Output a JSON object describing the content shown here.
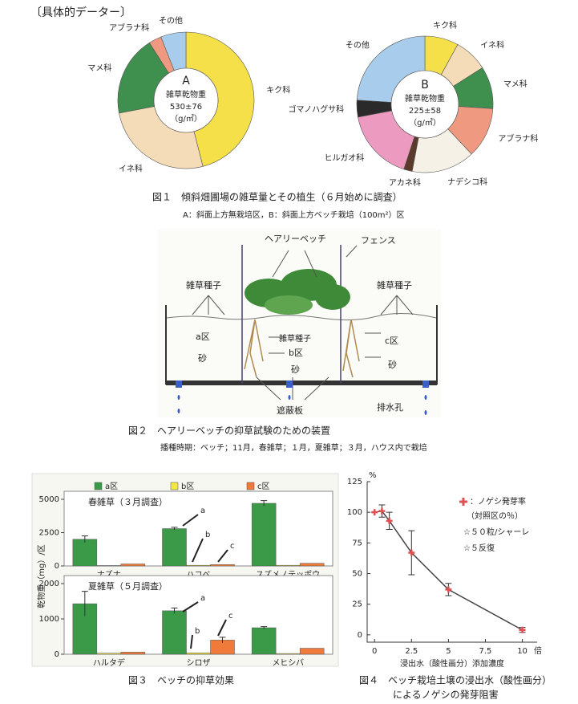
{
  "header": "〔具体的データー〕",
  "figure1": {
    "caption": "図１　傾斜畑圃場の雑草量とその植生（６月始めに調査）",
    "note": "A：斜面上方無栽培区，B：斜面上方ベッチ栽培（100m²）区"
  },
  "figure2": {
    "caption": "図２　ヘアリーベッチの抑草試験のための装置",
    "note": "播種時期：ベッチ；11月，春雑草；１月，夏雑草；３月，ハウス内で栽培",
    "labels": [
      "ヘアリーベッチ",
      "フェンス",
      "雑草種子",
      "雑草種子",
      "a区",
      "砂",
      "雑草種子",
      "b区",
      "砂",
      "c区",
      "砂",
      "遮蔽板",
      "排水孔"
    ]
  },
  "figure3": {
    "caption": "図３　ベッチの抑草効果",
    "ylabel": "乾物重（mg）/区"
  },
  "figure4": {
    "caption": [
      "図４　ベッチ栽培土壌の浸出水（酸性画分）",
      "によるノゲシの発芽阻害"
    ]
  },
  "chart_data": [
    {
      "type": "pie",
      "center_text": [
        "A",
        "雑草乾物重",
        "530±76",
        "（g/㎡）"
      ],
      "categories": [
        "キク科",
        "イネ科",
        "マメ科",
        "アブラナ科",
        "その他"
      ],
      "values": [
        46,
        26,
        19,
        3,
        6
      ],
      "colors": [
        "#f5e04a",
        "#f4dcb8",
        "#3f8f4f",
        "#ef9a80",
        "#a8ccec"
      ]
    },
    {
      "type": "pie",
      "center_text": [
        "B",
        "雑草乾物重",
        "225±58",
        "（g/㎡）"
      ],
      "categories": [
        "キク科",
        "イネ科",
        "マメ科",
        "アブラナ科",
        "ナデシコ科",
        "アカネ科",
        "ヒルガオ科",
        "ゴマノハグサ科",
        "その他"
      ],
      "values": [
        8,
        8,
        10,
        12,
        15,
        2,
        17,
        4,
        24
      ],
      "colors": [
        "#f5e04a",
        "#f4dcb8",
        "#3f8f4f",
        "#ef9a80",
        "#f6f1e6",
        "#5a3a2a",
        "#ec9ac0",
        "#2a2a2a",
        "#a8ccec"
      ]
    },
    {
      "type": "bar",
      "title": "春雑草（３月調査）",
      "categories": [
        "ナズナ",
        "ハコベ",
        "スズメノテッポウ"
      ],
      "series": [
        {
          "name": "a区",
          "color": "#3a9a48",
          "values": [
            2000,
            2800,
            4700
          ],
          "errors": [
            250,
            100,
            200
          ]
        },
        {
          "name": "b区",
          "color": "#f2e640",
          "values": [
            30,
            50,
            50
          ],
          "errors": [
            null,
            null,
            null
          ]
        },
        {
          "name": "c区",
          "color": "#f07a3a",
          "values": [
            150,
            100,
            200
          ],
          "errors": [
            null,
            null,
            null
          ]
        }
      ],
      "ylim": [
        0,
        5000
      ],
      "yticks": [
        0,
        2500,
        5000
      ],
      "annotations": [
        "a",
        "b",
        "c"
      ]
    },
    {
      "type": "bar",
      "title": "夏雑草（５月調査）",
      "categories": [
        "ハルタデ",
        "シロザ",
        "メヒシバ"
      ],
      "series": [
        {
          "name": "a区",
          "color": "#3a9a48",
          "values": [
            1430,
            1230,
            750
          ],
          "errors": [
            350,
            80,
            30
          ]
        },
        {
          "name": "b区",
          "color": "#f2e640",
          "values": [
            30,
            40,
            20
          ],
          "errors": [
            null,
            null,
            null
          ]
        },
        {
          "name": "c区",
          "color": "#f07a3a",
          "values": [
            60,
            400,
            170
          ],
          "errors": [
            null,
            80,
            null
          ]
        }
      ],
      "ylim": [
        0,
        2000
      ],
      "yticks": [
        0,
        1000,
        2000
      ],
      "annotations": [
        "a",
        "b",
        "c"
      ]
    },
    {
      "type": "line",
      "x": [
        0,
        0.5,
        1,
        2.5,
        5,
        10
      ],
      "series": [
        {
          "name": "：ノゲシ発芽率",
          "color": "#444",
          "marker_color": "#e05050",
          "values": [
            100,
            101,
            93,
            67,
            37,
            4
          ],
          "errors": [
            0,
            5,
            7,
            18,
            5,
            2
          ]
        }
      ],
      "legend_notes": [
        "（対照区の％）",
        "☆５０粒/シャーレ",
        "☆５反復"
      ],
      "xlim": [
        -0.5,
        11
      ],
      "xticks": [
        0,
        2.5,
        5,
        7.5,
        10
      ],
      "ylim": [
        -6,
        125
      ],
      "yticks": [
        0,
        25,
        50,
        75,
        100,
        125
      ],
      "y_unit": "%",
      "x_unit": "倍",
      "xlabel": "浸出水（酸性画分）添加濃度"
    }
  ]
}
